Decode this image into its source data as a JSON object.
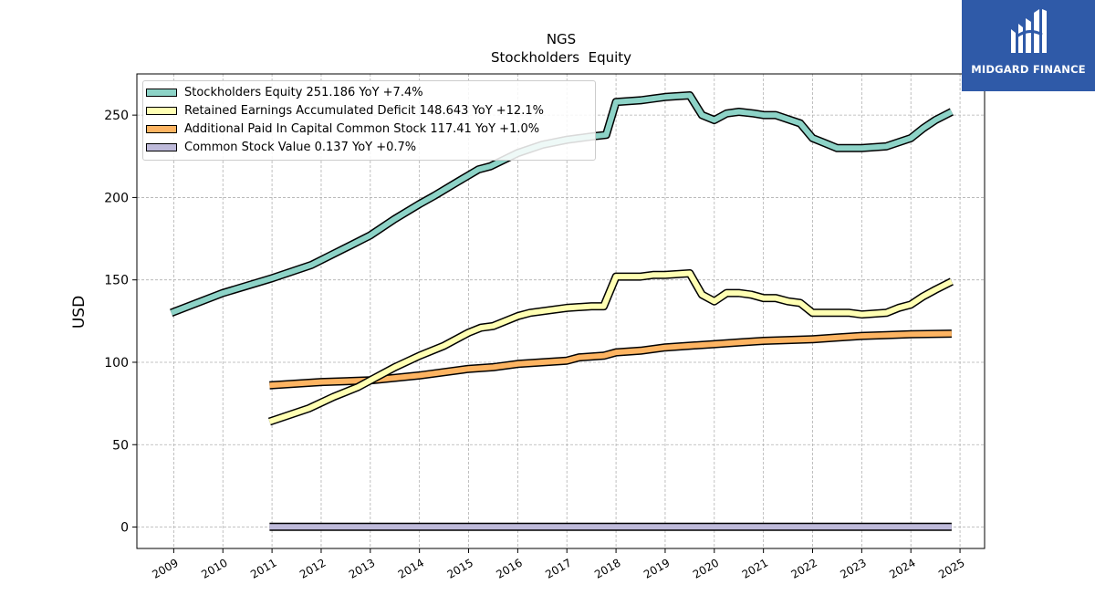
{
  "chart_data": {
    "type": "line",
    "title": "NGS",
    "subtitle": "Stockholders  Equity",
    "ylabel": "USD",
    "xlabel": "",
    "ylim": [
      -13,
      275
    ],
    "xlim": [
      2008.25,
      2025.5
    ],
    "yticks": [
      0,
      50,
      100,
      150,
      200,
      250
    ],
    "xticks": [
      "2009",
      "2010",
      "2011",
      "2012",
      "2013",
      "2014",
      "2015",
      "2016",
      "2017",
      "2018",
      "2019",
      "2020",
      "2021",
      "2022",
      "2023",
      "2024",
      "2025"
    ],
    "grid": true,
    "legend_position": "top-left",
    "series": [
      {
        "name": "Stockholders Equity",
        "legend": "Stockholders Equity  251.186 YoY +7.4%",
        "color": "#8dd3c7",
        "x": [
          2008.95,
          2010.0,
          2011.0,
          2011.8,
          2012.2,
          2012.6,
          2013.0,
          2013.5,
          2014.0,
          2014.3,
          2014.8,
          2015.2,
          2015.45,
          2016.0,
          2016.5,
          2017.0,
          2017.5,
          2017.8,
          2018.0,
          2018.5,
          2018.75,
          2019.0,
          2019.5,
          2019.75,
          2020.0,
          2020.25,
          2020.5,
          2020.8,
          2021.0,
          2021.25,
          2021.75,
          2022.0,
          2022.25,
          2022.5,
          2022.75,
          2023.0,
          2023.5,
          2024.0,
          2024.25,
          2024.5,
          2024.83
        ],
        "values": [
          130,
          142,
          151,
          159,
          165,
          171,
          177,
          187,
          196,
          201,
          210,
          217,
          219,
          227,
          232,
          235,
          237,
          238,
          258,
          259,
          260,
          261,
          262,
          250,
          247,
          251,
          252,
          251,
          250,
          250,
          245,
          236,
          233,
          230,
          230,
          230,
          231,
          236,
          242,
          247,
          252
        ]
      },
      {
        "name": "Retained Earnings Accumulated Deficit",
        "legend": "Retained Earnings Accumulated Deficit  148.643 YoY +12.1%",
        "color": "#ffffb3",
        "x": [
          2010.95,
          2011.75,
          2012.25,
          2012.75,
          2013.0,
          2013.5,
          2014.0,
          2014.5,
          2015.0,
          2015.25,
          2015.5,
          2016.0,
          2016.25,
          2016.75,
          2017.0,
          2017.5,
          2017.75,
          2018.0,
          2018.5,
          2018.75,
          2019.0,
          2019.5,
          2019.75,
          2020.0,
          2020.25,
          2020.5,
          2020.75,
          2021.0,
          2021.25,
          2021.5,
          2021.75,
          2022.0,
          2022.5,
          2022.75,
          2023.0,
          2023.5,
          2023.75,
          2024.0,
          2024.25,
          2024.5,
          2024.83
        ],
        "values": [
          64,
          72,
          79,
          85,
          89,
          97,
          104,
          110,
          118,
          121,
          122,
          128,
          130,
          132,
          133,
          134,
          134,
          152,
          152,
          153,
          153,
          154,
          141,
          137,
          142,
          142,
          141,
          139,
          139,
          137,
          136,
          130,
          130,
          130,
          129,
          130,
          133,
          135,
          140,
          144,
          149
        ]
      },
      {
        "name": "Additional Paid In Capital Common Stock",
        "legend": "Additional Paid In Capital Common Stock  117.41 YoY +1.0%",
        "color": "#fdb462",
        "x": [
          2010.95,
          2012.0,
          2013.0,
          2014.0,
          2015.0,
          2015.5,
          2016.0,
          2016.5,
          2017.0,
          2017.25,
          2017.75,
          2018.0,
          2018.5,
          2019.0,
          2019.5,
          2020.0,
          2020.5,
          2021.0,
          2021.5,
          2022.0,
          2022.5,
          2023.0,
          2023.5,
          2024.0,
          2024.5,
          2024.83
        ],
        "values": [
          86,
          88,
          89,
          92,
          96,
          97,
          99,
          100,
          101,
          103,
          104,
          106,
          107,
          109,
          110,
          111,
          112,
          113,
          113.5,
          114,
          115,
          116,
          116.5,
          117,
          117.2,
          117.4
        ]
      },
      {
        "name": "Common Stock Value",
        "legend": "Common Stock Value  0.137 YoY +0.7%",
        "color": "#bebada",
        "x": [
          2010.95,
          2024.83
        ],
        "values": [
          0.137,
          0.137
        ]
      }
    ]
  },
  "logo": {
    "text": "MIDGARD FINANCE",
    "color": "#2f5aa8"
  }
}
